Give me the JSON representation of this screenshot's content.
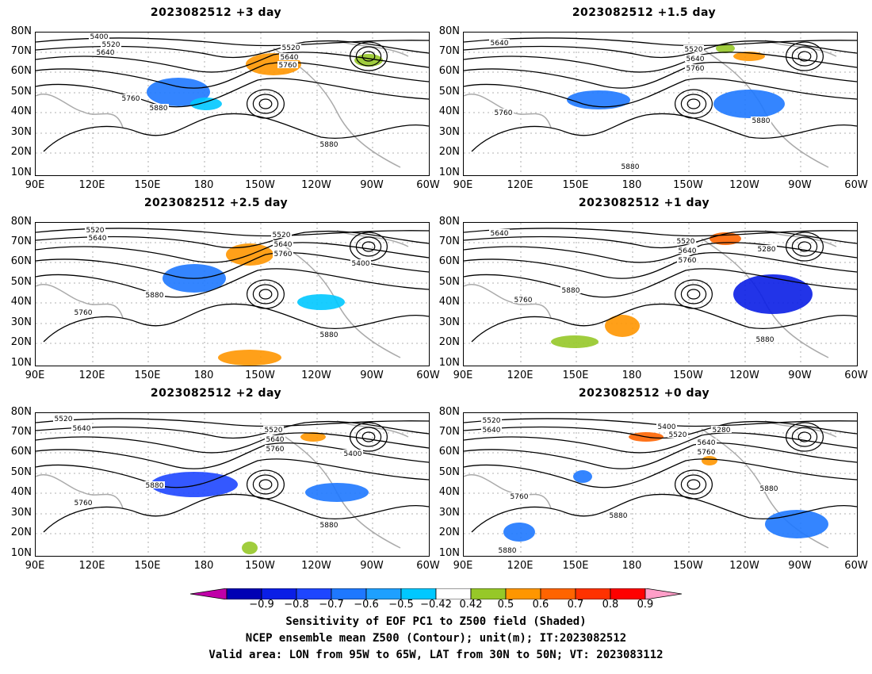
{
  "panels": [
    {
      "title": "2023082512  +3 day"
    },
    {
      "title": "2023082512  +1.5 day"
    },
    {
      "title": "2023082512  +2.5 day"
    },
    {
      "title": "2023082512  +1 day"
    },
    {
      "title": "2023082512  +2 day"
    },
    {
      "title": "2023082512  +0 day"
    }
  ],
  "axes": {
    "lat_labels": [
      "80N",
      "70N",
      "60N",
      "50N",
      "40N",
      "30N",
      "20N",
      "10N"
    ],
    "lon_labels": [
      "90E",
      "120E",
      "150E",
      "180",
      "150W",
      "120W",
      "90W",
      "60W"
    ]
  },
  "contour_labels": {
    "p0": [
      "5400",
      "5520",
      "5640",
      "5520",
      "5640",
      "5760",
      "5760",
      "5880",
      "5880"
    ],
    "p1": [
      "5640",
      "5520",
      "5640",
      "5760",
      "5760",
      "5880",
      "5880"
    ],
    "p2": [
      "5520",
      "5640",
      "5520",
      "5640",
      "5760",
      "5400",
      "5880",
      "5760",
      "5880"
    ],
    "p3": [
      "5640",
      "5520",
      "5640",
      "5760",
      "5280",
      "5880",
      "5760",
      "5880"
    ],
    "p4": [
      "5520",
      "5640",
      "5520",
      "5640",
      "5760",
      "5400",
      "5880",
      "5760",
      "5880"
    ],
    "p5": [
      "5520",
      "5640",
      "5400",
      "5520",
      "5640",
      "5760",
      "5280",
      "5880",
      "5760",
      "5880",
      "5880"
    ]
  },
  "colorbar": {
    "ticks": [
      "−0.9",
      "−0.8",
      "−0.7",
      "−0.6",
      "−0.5",
      "−0.42",
      "0.42",
      "0.5",
      "0.6",
      "0.7",
      "0.8",
      "0.9"
    ],
    "colors": [
      "#c000a8",
      "#0000b4",
      "#0a1ee6",
      "#1e46ff",
      "#1e78ff",
      "#1ea0ff",
      "#00c8ff",
      "#ffffff",
      "#96c828",
      "#ff9600",
      "#ff6400",
      "#ff3200",
      "#ff0000",
      "#ff9ec8"
    ]
  },
  "footer": {
    "line1": "Sensitivity of EOF PC1 to Z500 field (Shaded)",
    "line2": "NCEP ensemble mean Z500 (Contour); unit(m); IT:2023082512",
    "line3": "Valid area: LON from 95W to 65W, LAT from 30N to 50N; VT: 2023083112"
  }
}
